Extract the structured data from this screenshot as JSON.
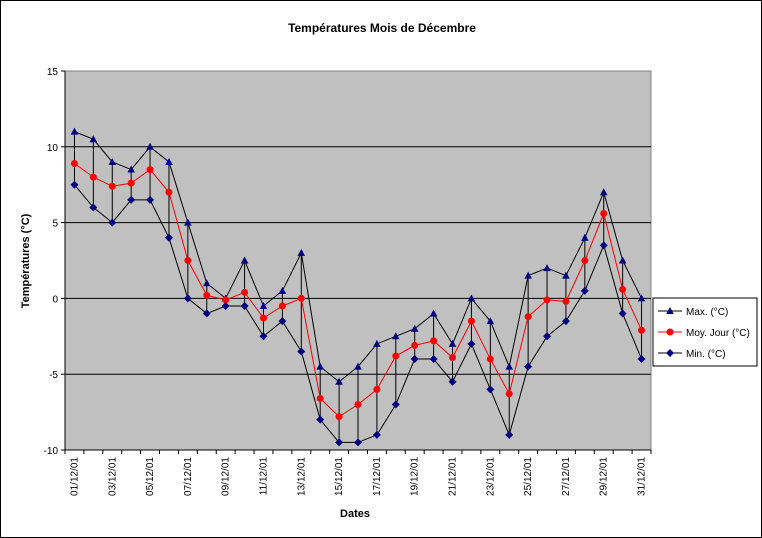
{
  "chart_data": {
    "type": "line",
    "title": "Températures Mois de Décembre",
    "xlabel": "Dates",
    "ylabel": "Températures (°C)",
    "ylim": [
      -10,
      15
    ],
    "yticks": [
      -10,
      -5,
      0,
      5,
      10,
      15
    ],
    "grid": true,
    "legend_position": "right",
    "categories": [
      "01/12/01",
      "02/12/01",
      "03/12/01",
      "04/12/01",
      "05/12/01",
      "06/12/01",
      "07/12/01",
      "08/12/01",
      "09/12/01",
      "10/12/01",
      "11/12/01",
      "12/12/01",
      "13/12/01",
      "14/12/01",
      "15/12/01",
      "16/12/01",
      "17/12/01",
      "18/12/01",
      "19/12/01",
      "20/12/01",
      "21/12/01",
      "22/12/01",
      "23/12/01",
      "24/12/01",
      "25/12/01",
      "26/12/01",
      "27/12/01",
      "28/12/01",
      "29/12/01",
      "30/12/01",
      "31/12/01"
    ],
    "shown_tick_labels": [
      "01/12/01",
      "03/12/01",
      "05/12/01",
      "07/12/01",
      "09/12/01",
      "11/12/01",
      "13/12/01",
      "15/12/01",
      "17/12/01",
      "19/12/01",
      "21/12/01",
      "23/12/01",
      "25/12/01",
      "27/12/01",
      "29/12/01",
      "31/12/01"
    ],
    "high_low_lines": true,
    "series": [
      {
        "name": "Max. (°C)",
        "color": "#000080",
        "marker": "triangle",
        "values": [
          11,
          10.5,
          9,
          8.5,
          10,
          9,
          5,
          1,
          0,
          2.5,
          -0.5,
          0.5,
          3,
          -4.5,
          -5.5,
          -4.5,
          -3,
          -2.5,
          -2,
          -1,
          -3,
          0,
          -1.5,
          -4.5,
          1.5,
          2,
          1.5,
          4,
          7,
          2.5,
          0
        ]
      },
      {
        "name": "Moy. Jour (°C)",
        "color": "#ff0000",
        "marker": "circle",
        "values": [
          8.9,
          8.0,
          7.4,
          7.6,
          8.5,
          7.0,
          2.5,
          0.2,
          -0.1,
          0.4,
          -1.3,
          -0.5,
          0,
          -6.6,
          -7.8,
          -7.0,
          -6.0,
          -3.8,
          -3.1,
          -2.8,
          -3.9,
          -1.5,
          -4.0,
          -6.3,
          -1.2,
          -0.1,
          -0.2,
          2.5,
          5.6,
          0.6,
          -2.1
        ]
      },
      {
        "name": "Min. (°C)",
        "color": "#000080",
        "marker": "diamond",
        "values": [
          7.5,
          6,
          5,
          6.5,
          6.5,
          4,
          0,
          -1,
          -0.5,
          -0.5,
          -2.5,
          -1.5,
          -3.5,
          -8,
          -9.5,
          -9.5,
          -9,
          -7,
          -4,
          -4,
          -5.5,
          -3,
          -6,
          -9,
          -4.5,
          -2.5,
          -1.5,
          0.5,
          3.5,
          -1,
          -4
        ]
      }
    ]
  }
}
